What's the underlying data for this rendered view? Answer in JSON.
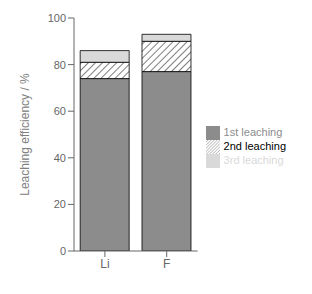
{
  "chart_data": {
    "type": "bar",
    "stacked": true,
    "categories": [
      "Li",
      "F"
    ],
    "series": [
      {
        "name": "1st leaching",
        "color": "#8c8c8c",
        "values": [
          74,
          77
        ]
      },
      {
        "name": "2nd leaching",
        "color": "#ffffff",
        "values": [
          7,
          13
        ]
      },
      {
        "name": "3rd leaching",
        "color": "#d9d9d9",
        "values": [
          5,
          3
        ]
      }
    ],
    "ylabel": "Leaching efficiency / %",
    "ylim": [
      0,
      100
    ],
    "yticks": [
      0,
      20,
      40,
      60,
      80,
      100
    ],
    "grid": false,
    "legend": "right"
  }
}
